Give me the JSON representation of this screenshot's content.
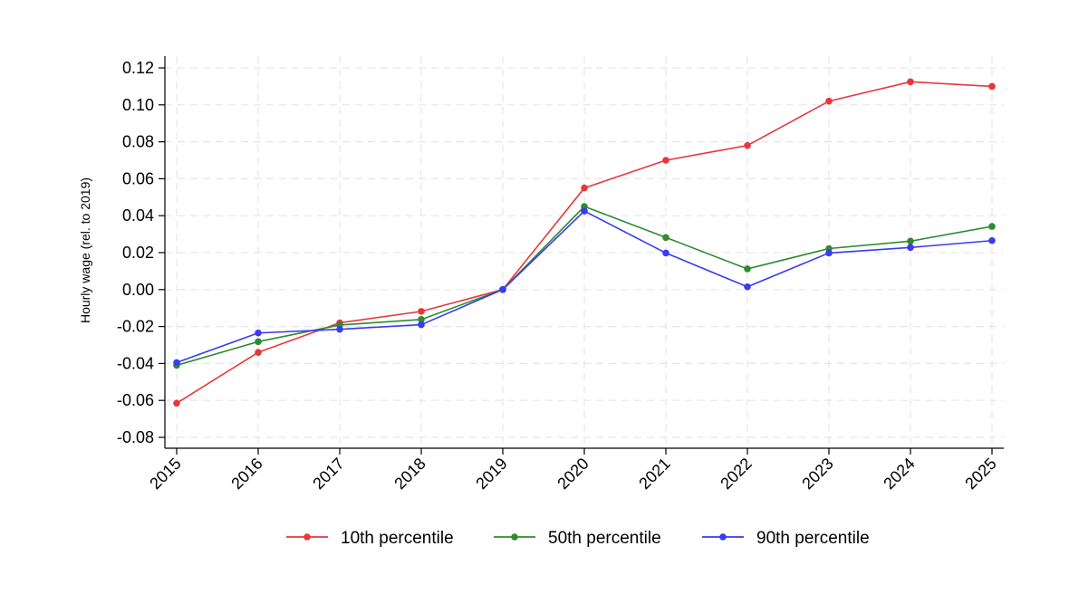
{
  "chart_data": {
    "type": "line",
    "title": "",
    "xlabel": "",
    "ylabel": "Hourly wage (rel. to 2019)",
    "x": [
      "2015",
      "2016",
      "2017",
      "2018",
      "2019",
      "2020",
      "2021",
      "2022",
      "2023",
      "2024",
      "2025"
    ],
    "ylim": [
      -0.08,
      0.12
    ],
    "yticks": [
      -0.08,
      -0.06,
      -0.04,
      -0.02,
      0.0,
      0.02,
      0.04,
      0.06,
      0.08,
      0.1,
      0.12
    ],
    "ytick_labels": [
      "-0.08",
      "-0.06",
      "-0.04",
      "-0.02",
      "0.00",
      "0.02",
      "0.04",
      "0.06",
      "0.08",
      "0.10",
      "0.12"
    ],
    "grid": true,
    "legend_position": "bottom",
    "series": [
      {
        "name": "10th percentile",
        "color": "#e8373a",
        "values": [
          -0.0615,
          -0.034,
          -0.018,
          -0.0118,
          0.0,
          0.055,
          0.07,
          0.078,
          0.102,
          0.1125,
          0.11
        ]
      },
      {
        "name": "50th percentile",
        "color": "#2e8b2e",
        "values": [
          -0.041,
          -0.0282,
          -0.0192,
          -0.0162,
          0.0,
          0.045,
          0.0282,
          0.0112,
          0.0222,
          0.0262,
          0.0342
        ]
      },
      {
        "name": "90th percentile",
        "color": "#3a3af0",
        "values": [
          -0.0395,
          -0.0235,
          -0.0215,
          -0.019,
          0.0,
          0.0425,
          0.0198,
          0.0015,
          0.0198,
          0.0228,
          0.0265
        ]
      }
    ]
  }
}
